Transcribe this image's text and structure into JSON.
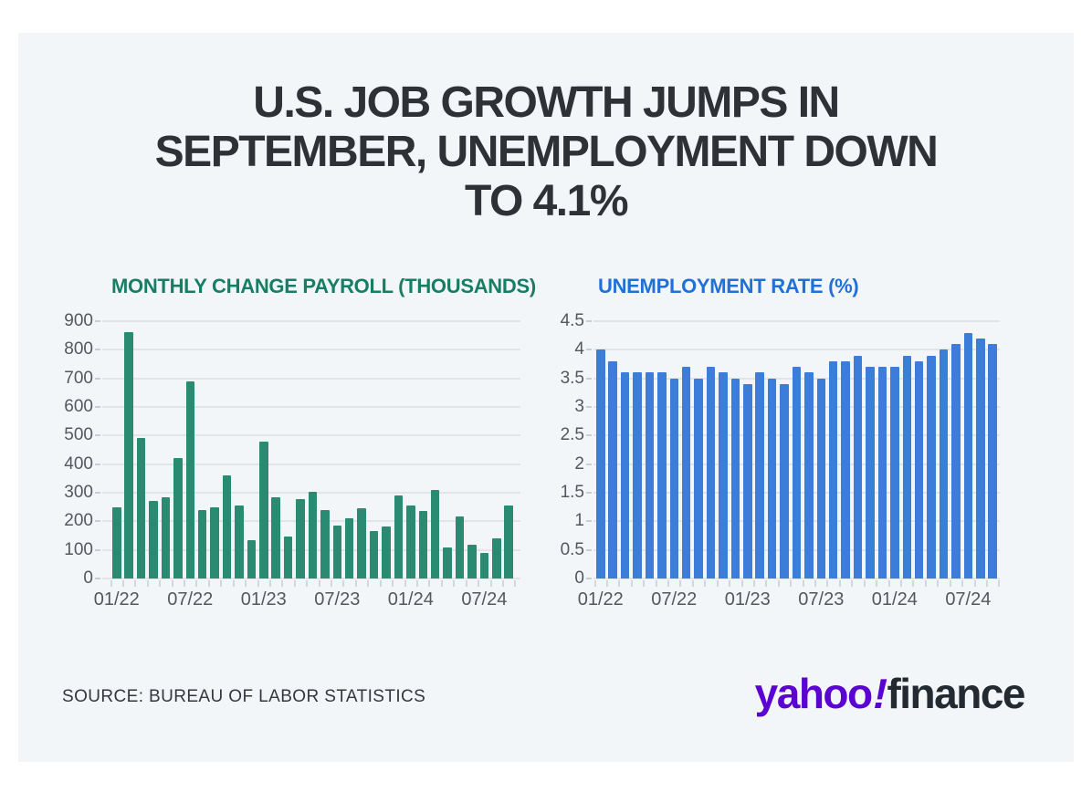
{
  "headline": "U.S. JOB GROWTH JUMPS IN\nSEPTEMBER, UNEMPLOYMENT DOWN\nTO 4.1%",
  "source": "SOURCE: BUREAU OF LABOR STATISTICS",
  "logo": {
    "yahoo": "yahoo",
    "bang": "!",
    "finance": "finance",
    "yahoo_color": "#5b01d1",
    "finance_color": "#232a31"
  },
  "colors": {
    "page_bg": "#ffffff",
    "card_bg": "#f2f6f9",
    "headline_text": "#2e3136",
    "axis_text": "#54585d",
    "gridline": "#e2e4e8",
    "tick": "#d3d7db"
  },
  "chart_data": [
    {
      "type": "bar",
      "title": "MONTHLY CHANGE PAYROLL (THOUSANDS)",
      "title_color": "#187d65",
      "bar_color": "#2b8a72",
      "categories": [
        "01/22",
        "02/22",
        "03/22",
        "04/22",
        "05/22",
        "06/22",
        "07/22",
        "08/22",
        "09/22",
        "10/22",
        "11/22",
        "12/22",
        "01/23",
        "02/23",
        "03/23",
        "04/23",
        "05/23",
        "06/23",
        "07/23",
        "08/23",
        "09/23",
        "10/23",
        "11/23",
        "12/23",
        "01/24",
        "02/24",
        "03/24",
        "04/24",
        "05/24",
        "06/24",
        "07/24",
        "08/24",
        "09/24"
      ],
      "values": [
        250,
        862,
        490,
        270,
        285,
        420,
        690,
        240,
        250,
        360,
        255,
        135,
        480,
        285,
        146,
        278,
        303,
        240,
        184,
        210,
        246,
        165,
        182,
        290,
        256,
        236,
        310,
        108,
        216,
        118,
        89,
        142,
        254
      ],
      "ylim": [
        0,
        900
      ],
      "ytick_labels": [
        "0",
        "100",
        "200",
        "300",
        "400",
        "500",
        "600",
        "700",
        "800",
        "900"
      ],
      "xtick_labels": [
        "01/22",
        "07/22",
        "01/23",
        "07/23",
        "01/24",
        "07/24"
      ],
      "xtick_positions": [
        0,
        6,
        12,
        18,
        24,
        30
      ],
      "grid": true,
      "legend": false
    },
    {
      "type": "bar",
      "title": "UNEMPLOYMENT RATE (%)",
      "title_color": "#2170d8",
      "bar_color": "#3b7dd8",
      "categories": [
        "01/22",
        "02/22",
        "03/22",
        "04/22",
        "05/22",
        "06/22",
        "07/22",
        "08/22",
        "09/22",
        "10/22",
        "11/22",
        "12/22",
        "01/23",
        "02/23",
        "03/23",
        "04/23",
        "05/23",
        "06/23",
        "07/23",
        "08/23",
        "09/23",
        "10/23",
        "11/23",
        "12/23",
        "01/24",
        "02/24",
        "03/24",
        "04/24",
        "05/24",
        "06/24",
        "07/24",
        "08/24",
        "09/24"
      ],
      "values": [
        4.0,
        3.8,
        3.6,
        3.6,
        3.6,
        3.6,
        3.5,
        3.7,
        3.5,
        3.7,
        3.6,
        3.5,
        3.4,
        3.6,
        3.5,
        3.4,
        3.7,
        3.6,
        3.5,
        3.8,
        3.8,
        3.9,
        3.7,
        3.7,
        3.7,
        3.9,
        3.8,
        3.9,
        4.0,
        4.1,
        4.3,
        4.2,
        4.1
      ],
      "ylim": [
        0,
        4.5
      ],
      "ytick_labels": [
        "0",
        "0.5",
        "1",
        "1.5",
        "2",
        "2.5",
        "3",
        "3.5",
        "4",
        "4.5"
      ],
      "xtick_labels": [
        "01/22",
        "07/22",
        "01/23",
        "07/23",
        "01/24",
        "07/24"
      ],
      "xtick_positions": [
        0,
        6,
        12,
        18,
        24,
        30
      ],
      "grid": true,
      "legend": false
    }
  ]
}
